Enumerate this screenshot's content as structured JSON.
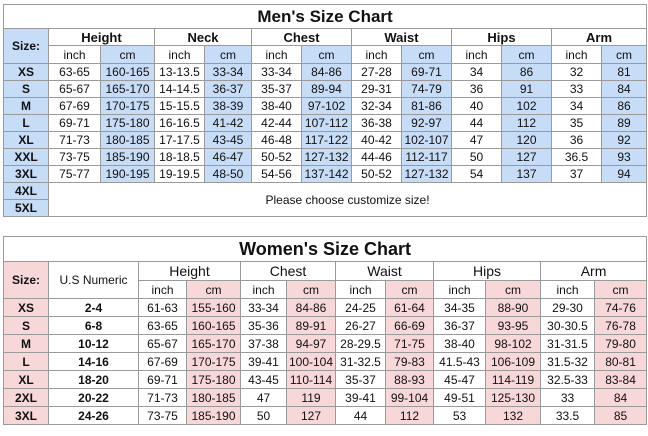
{
  "men": {
    "title": "Men's Size Chart",
    "size_label": "Size:",
    "groups": [
      "Height",
      "Neck",
      "Chest",
      "Waist",
      "Hips",
      "Arm"
    ],
    "units": [
      "inch",
      "cm"
    ],
    "rows": [
      {
        "size": "XS",
        "vals": [
          "63-65",
          "160-165",
          "13-13.5",
          "33-34",
          "33-34",
          "84-86",
          "27-28",
          "69-71",
          "34",
          "86",
          "32",
          "81"
        ]
      },
      {
        "size": "S",
        "vals": [
          "65-67",
          "165-170",
          "14-14.5",
          "36-37",
          "35-37",
          "89-94",
          "29-31",
          "74-79",
          "36",
          "91",
          "33",
          "84"
        ]
      },
      {
        "size": "M",
        "vals": [
          "67-69",
          "170-175",
          "15-15.5",
          "38-39",
          "38-40",
          "97-102",
          "32-34",
          "81-86",
          "40",
          "102",
          "34",
          "86"
        ]
      },
      {
        "size": "L",
        "vals": [
          "69-71",
          "175-180",
          "16-16.5",
          "41-42",
          "42-44",
          "107-112",
          "36-38",
          "92-97",
          "44",
          "112",
          "35",
          "89"
        ]
      },
      {
        "size": "XL",
        "vals": [
          "71-73",
          "180-185",
          "17-17.5",
          "43-45",
          "46-48",
          "117-122",
          "40-42",
          "102-107",
          "47",
          "120",
          "36",
          "92"
        ]
      },
      {
        "size": "XXL",
        "vals": [
          "73-75",
          "185-190",
          "18-18.5",
          "46-47",
          "50-52",
          "127-132",
          "44-46",
          "112-117",
          "50",
          "127",
          "36.5",
          "93"
        ]
      },
      {
        "size": "3XL",
        "vals": [
          "75-77",
          "190-195",
          "19-19.5",
          "48-50",
          "54-56",
          "137-142",
          "50-52",
          "127-132",
          "54",
          "137",
          "37",
          "94"
        ]
      }
    ],
    "extra_sizes": [
      "4XL",
      "5XL"
    ],
    "note": "Please choose customize size!"
  },
  "women": {
    "title": "Women's Size Chart",
    "size_label": "Size:",
    "us_numeric": "U.S Numeric",
    "groups": [
      "Height",
      "Chest",
      "Waist",
      "Hips",
      "Arm"
    ],
    "units": [
      "inch",
      "cm"
    ],
    "rows": [
      {
        "size": "XS",
        "num": "2-4",
        "vals": [
          "61-63",
          "155-160",
          "33-34",
          "84-86",
          "24-25",
          "61-64",
          "34-35",
          "88-90",
          "29-30",
          "74-76"
        ]
      },
      {
        "size": "S",
        "num": "6-8",
        "vals": [
          "63-65",
          "160-165",
          "35-36",
          "89-91",
          "26-27",
          "66-69",
          "36-37",
          "93-95",
          "30-30.5",
          "76-78"
        ]
      },
      {
        "size": "M",
        "num": "10-12",
        "vals": [
          "65-67",
          "165-170",
          "37-38",
          "94-97",
          "28-29.5",
          "71-75",
          "38-40",
          "98-102",
          "31-31.5",
          "79-80"
        ]
      },
      {
        "size": "L",
        "num": "14-16",
        "vals": [
          "67-69",
          "170-175",
          "39-41",
          "100-104",
          "31-32.5",
          "79-83",
          "41.5-43",
          "106-109",
          "31.5-32",
          "80-81"
        ]
      },
      {
        "size": "XL",
        "num": "18-20",
        "vals": [
          "69-71",
          "175-180",
          "43-45",
          "110-114",
          "35-37",
          "88-93",
          "45-47",
          "114-119",
          "32.5-33",
          "83-84"
        ]
      },
      {
        "size": "2XL",
        "num": "20-22",
        "vals": [
          "71-73",
          "180-185",
          "47",
          "119",
          "39-41",
          "99-104",
          "49-51",
          "125-130",
          "33",
          "84"
        ]
      },
      {
        "size": "3XL",
        "num": "24-26",
        "vals": [
          "73-75",
          "185-190",
          "50",
          "127",
          "44",
          "112",
          "53",
          "132",
          "33.5",
          "85"
        ]
      }
    ]
  }
}
